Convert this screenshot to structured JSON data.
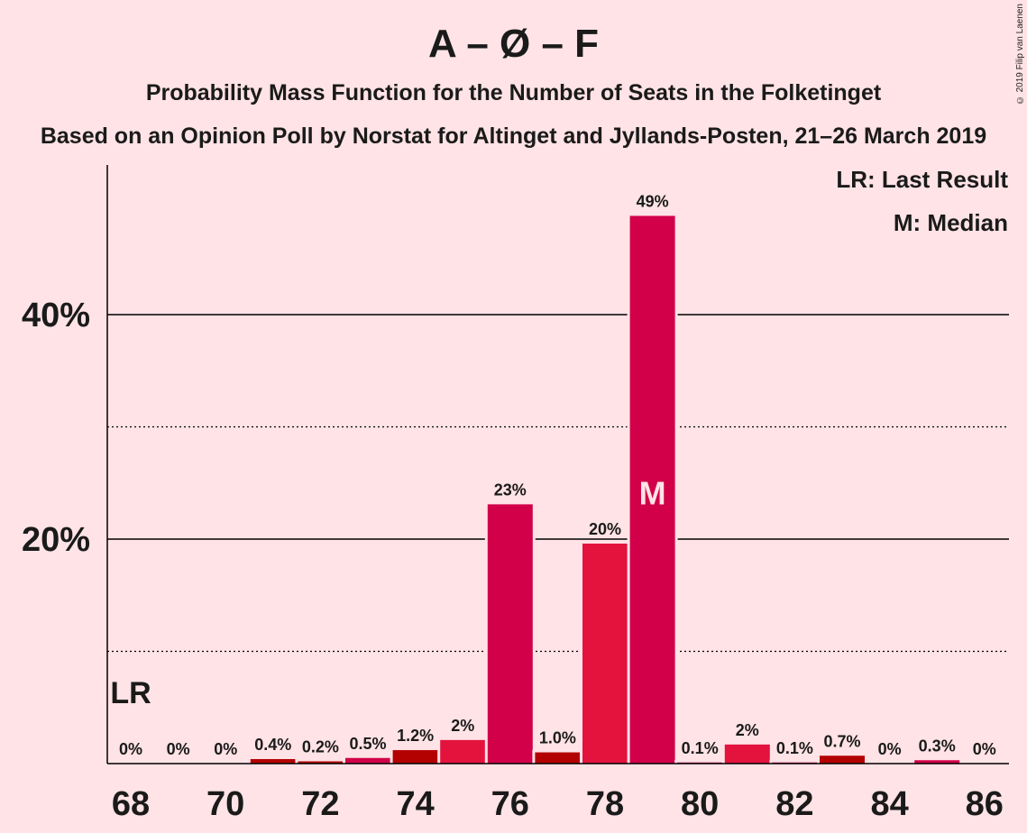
{
  "title": "A – Ø – F",
  "subtitle": "Probability Mass Function for the Number of Seats in the Folketinget",
  "subtitle2": "Based on an Opinion Poll by Norstat for Altinget and Jyllands-Posten, 21–26 March 2019",
  "copyright": "© 2019 Filip van Laenen",
  "legend": {
    "lr": "LR: Last Result",
    "median": "M: Median"
  },
  "colors": {
    "background": "#FFE3E6",
    "bar_main": "#D10049",
    "bar_secondary": "#E3133E",
    "bar_tertiary": "#B30000"
  },
  "chart_data": {
    "type": "bar",
    "categories": [
      68,
      69,
      70,
      71,
      72,
      73,
      74,
      75,
      76,
      77,
      78,
      79,
      80,
      81,
      82,
      83,
      84,
      85,
      86
    ],
    "values": [
      0,
      0,
      0,
      0.4,
      0.2,
      0.5,
      1.2,
      2.1,
      23.1,
      1.0,
      19.6,
      48.8,
      0.1,
      1.7,
      0.1,
      0.7,
      0,
      0.3,
      0
    ],
    "labels": [
      "0%",
      "0%",
      "0%",
      "0.4%",
      "0.2%",
      "0.5%",
      "1.2%",
      "2%",
      "23%",
      "1.0%",
      "20%",
      "49%",
      "0.1%",
      "2%",
      "0.1%",
      "0.7%",
      "0%",
      "0.3%",
      "0%"
    ],
    "bar_colors": [
      "#D10049",
      "#D10049",
      "#D10049",
      "#B30000",
      "#B30000",
      "#D10049",
      "#B30000",
      "#E3133E",
      "#D10049",
      "#B30000",
      "#E3133E",
      "#D10049",
      "#D10049",
      "#E3133E",
      "#D10049",
      "#B30000",
      "#D10049",
      "#D10049",
      "#D10049"
    ],
    "x_tick_labels": [
      "68",
      "70",
      "72",
      "74",
      "76",
      "78",
      "80",
      "82",
      "84",
      "86"
    ],
    "x_tick_values": [
      68,
      70,
      72,
      74,
      76,
      78,
      80,
      82,
      84,
      86
    ],
    "y_tick_labels": [
      "20%",
      "40%"
    ],
    "y_tick_values": [
      20,
      40
    ],
    "y_dotted_values": [
      10,
      30
    ],
    "ylim": [
      0,
      53
    ],
    "last_result": {
      "seat": 68,
      "label": "LR"
    },
    "median": {
      "seat": 79,
      "label": "M"
    }
  }
}
